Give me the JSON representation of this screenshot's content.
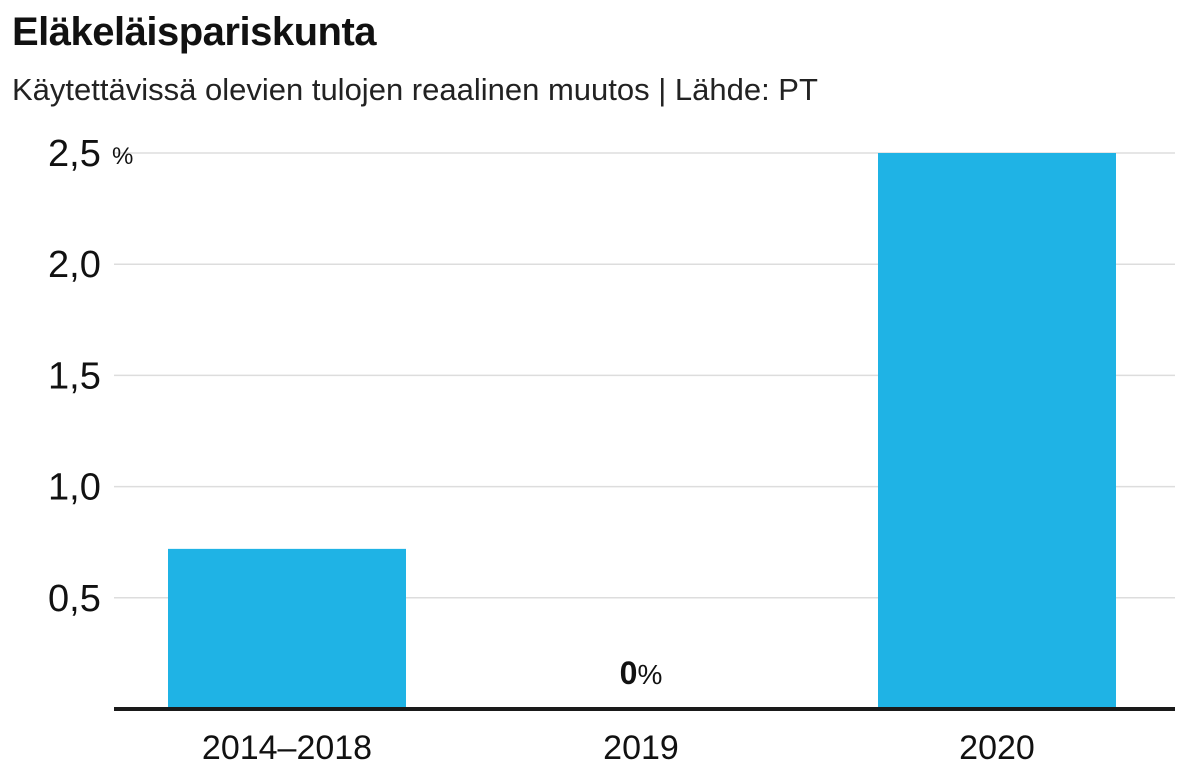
{
  "chart_data": {
    "type": "bar",
    "title": "Eläkeläispariskunta",
    "subtitle": "Käytettävissä olevien tulojen reaalinen muutos |  Lähde: PT",
    "categories": [
      "2014–2018",
      "2019",
      "2020"
    ],
    "values": [
      0.72,
      0,
      2.5
    ],
    "yticks": [
      "2,5",
      "2,0",
      "1,5",
      "1,0",
      "0,5"
    ],
    "ytick_values": [
      2.5,
      2.0,
      1.5,
      1.0,
      0.5
    ],
    "y_unit": "%",
    "ylim": [
      0,
      2.5
    ],
    "grid": true,
    "bar_color": "#1fb3e5",
    "data_labels": [
      {
        "category_index": 1,
        "value": "0",
        "unit": "%"
      }
    ]
  }
}
